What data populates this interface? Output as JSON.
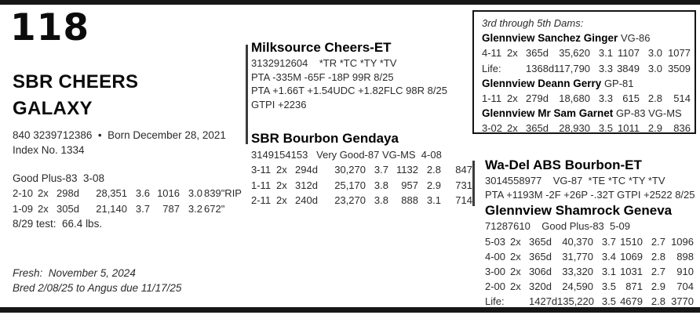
{
  "colors": {
    "rule": "#161616",
    "text": "#2b2b2b"
  },
  "lot": {
    "number": "118"
  },
  "animal": {
    "name_line1": "SBR CHEERS",
    "name_line2": "GALAXY",
    "id_line": "840 3239712386  •  Born December 28, 2021",
    "index_line": "Index No. 1334",
    "classification": "Good Plus-83  3-08",
    "lactations": [
      [
        "2-10",
        "2x",
        "298d",
        "28,351",
        "3.6",
        "1016",
        "3.0",
        "839\"RIP"
      ],
      [
        "1-09",
        "2x",
        "305d",
        "21,140",
        "3.7",
        "787",
        "3.2",
        "672\""
      ]
    ],
    "test_line": "8/29 test:  66.4 lbs.",
    "fresh_line": "Fresh:  November 5, 2024",
    "bred_line": "Bred 2/08/25 to Angus due 11/17/25"
  },
  "sire": {
    "name": "Milksource Cheers-ET",
    "reg_line": "3132912604    *TR *TC *TY *TV",
    "pta_line1": "PTA -335M -65F -18P 99R 8/25",
    "pta_line2": "PTA +1.66T +1.54UDC +1.82FLC 98R 8/25",
    "gtpi_line": "GTPI +2236"
  },
  "dam": {
    "name": "SBR Bourbon Gendaya",
    "reg_line": "3149154153   Very Good-87 VG-MS  4-08",
    "lactations": [
      [
        "3-11",
        "2x",
        "294d",
        "30,270",
        "3.7",
        "1132",
        "2.8",
        "847"
      ],
      [
        "1-11",
        "2x",
        "312d",
        "25,170",
        "3.8",
        "957",
        "2.9",
        "731"
      ],
      [
        "2-11",
        "2x",
        "240d",
        "23,270",
        "3.8",
        "888",
        "3.1",
        "714"
      ]
    ]
  },
  "dams_box": {
    "title": "3rd through 5th Dams:",
    "entries": [
      {
        "name": "Glennview Sanchez Ginger",
        "score": "VG-86",
        "rows": [
          [
            "4-11",
            "2x",
            "365d",
            "35,620",
            "3.1",
            "1107",
            "3.0",
            "1077"
          ],
          [
            "Life:",
            "",
            "1368d",
            "117,790",
            "3.3",
            "3849",
            "3.0",
            "3509"
          ]
        ]
      },
      {
        "name": "Glennview Deann Gerry",
        "score": "GP-81",
        "rows": [
          [
            "1-11",
            "2x",
            "279d",
            "18,680",
            "3.3",
            "615",
            "2.8",
            "514"
          ]
        ]
      },
      {
        "name": "Glennview Mr Sam Garnet",
        "score": "GP-83 VG-MS",
        "rows": [
          [
            "3-02",
            "2x",
            "365d",
            "28,930",
            "3.5",
            "1011",
            "2.9",
            "836"
          ]
        ]
      }
    ]
  },
  "grandsire": {
    "name": "Wa-Del ABS Bourbon-ET",
    "reg_line": "3014558977    VG-87  *TE *TC *TY *TV",
    "pta_line": "PTA +1193M -2F +26P -.32T GTPI +2522 8/25"
  },
  "granddam": {
    "name": "Glennview Shamrock Geneva",
    "reg_line": "71287610    Good Plus-83  5-09",
    "lactations": [
      [
        "5-03",
        "2x",
        "365d",
        "40,370",
        "3.7",
        "1510",
        "2.7",
        "1096"
      ],
      [
        "4-00",
        "2x",
        "365d",
        "31,770",
        "3.4",
        "1069",
        "2.8",
        "898"
      ],
      [
        "3-00",
        "2x",
        "306d",
        "33,320",
        "3.1",
        "1031",
        "2.7",
        "910"
      ],
      [
        "2-00",
        "2x",
        "320d",
        "24,590",
        "3.5",
        "871",
        "2.9",
        "704"
      ],
      [
        "Life:",
        "",
        "1427d",
        "135,220",
        "3.5",
        "4679",
        "2.8",
        "3770"
      ]
    ]
  }
}
